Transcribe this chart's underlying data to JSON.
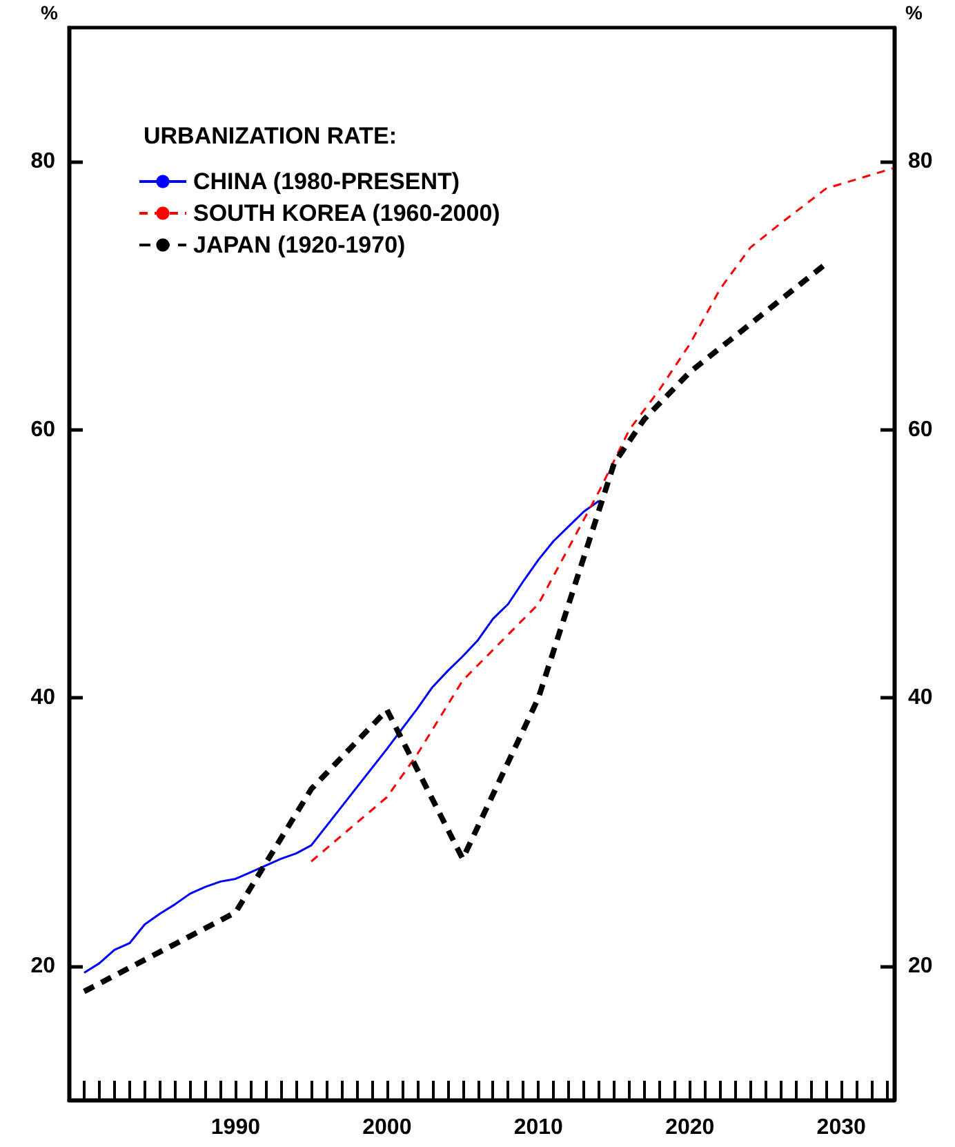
{
  "chart_data": {
    "type": "line",
    "legend_title": "URBANIZATION RATE:",
    "ylabel": "%",
    "y2label": "%",
    "xlim": [
      1979,
      2033.5
    ],
    "xticks": [
      {
        "value": 1980,
        "label": null
      },
      {
        "value": 1981,
        "label": null
      },
      {
        "value": 1982,
        "label": null
      },
      {
        "value": 1983,
        "label": null
      },
      {
        "value": 1984,
        "label": null
      },
      {
        "value": 1985,
        "label": null
      },
      {
        "value": 1986,
        "label": null
      },
      {
        "value": 1987,
        "label": null
      },
      {
        "value": 1988,
        "label": null
      },
      {
        "value": 1989,
        "label": null
      },
      1990,
      {
        "value": 1991,
        "label": null
      },
      {
        "value": 1992,
        "label": null
      },
      {
        "value": 1993,
        "label": null
      },
      {
        "value": 1994,
        "label": null
      },
      {
        "value": 1995,
        "label": null
      },
      {
        "value": 1996,
        "label": null
      },
      {
        "value": 1997,
        "label": null
      },
      {
        "value": 1998,
        "label": null
      },
      {
        "value": 1999,
        "label": null
      },
      2000,
      {
        "value": 2001,
        "label": null
      },
      {
        "value": 2002,
        "label": null
      },
      {
        "value": 2003,
        "label": null
      },
      {
        "value": 2004,
        "label": null
      },
      {
        "value": 2005,
        "label": null
      },
      {
        "value": 2006,
        "label": null
      },
      {
        "value": 2007,
        "label": null
      },
      {
        "value": 2008,
        "label": null
      },
      {
        "value": 2009,
        "label": null
      },
      2010,
      {
        "value": 2011,
        "label": null
      },
      {
        "value": 2012,
        "label": null
      },
      {
        "value": 2013,
        "label": null
      },
      {
        "value": 2014,
        "label": null
      },
      {
        "value": 2015,
        "label": null
      },
      {
        "value": 2016,
        "label": null
      },
      {
        "value": 2017,
        "label": null
      },
      {
        "value": 2018,
        "label": null
      },
      {
        "value": 2019,
        "label": null
      },
      2020,
      {
        "value": 2021,
        "label": null
      },
      {
        "value": 2022,
        "label": null
      },
      {
        "value": 2023,
        "label": null
      },
      {
        "value": 2024,
        "label": null
      },
      {
        "value": 2025,
        "label": null
      },
      {
        "value": 2026,
        "label": null
      },
      {
        "value": 2027,
        "label": null
      },
      {
        "value": 2028,
        "label": null
      },
      {
        "value": 2029,
        "label": null
      },
      2030,
      {
        "value": 2031,
        "label": null
      },
      {
        "value": 2032,
        "label": null
      },
      {
        "value": 2033,
        "label": null
      }
    ],
    "ylim": [
      10,
      90
    ],
    "yticks": [
      20,
      40,
      60,
      80
    ],
    "y2lim": [
      10,
      90
    ],
    "y2ticks": [
      20,
      40,
      60,
      80
    ],
    "grid": false,
    "legend": "top left",
    "marker": "none",
    "series": [
      {
        "name": "CHINA (1980-PRESENT)",
        "color": "#0000ff",
        "line_style": "solid",
        "x": [
          1980,
          1981,
          1982,
          1983,
          1984,
          1985,
          1986,
          1987,
          1988,
          1989,
          1990,
          1991,
          1992,
          1993,
          1994,
          1995,
          2000,
          2001,
          2002,
          2003,
          2004,
          2005,
          2006,
          2007,
          2008,
          2009,
          2010,
          2011,
          2012,
          2013,
          2014
        ],
        "values": [
          19.5,
          20.2,
          21.2,
          21.7,
          23.1,
          23.9,
          24.6,
          25.4,
          25.9,
          26.3,
          26.5,
          27,
          27.5,
          28,
          28.4,
          29,
          36.2,
          37.7,
          39.2,
          40.8,
          42,
          43.1,
          44.3,
          45.9,
          47,
          48.7,
          50.3,
          51.7,
          52.8,
          53.9,
          54.7
        ]
      },
      {
        "name": "SOUTH KOREA (1960-2000)",
        "color": "#ff0000",
        "line_style": "dashed",
        "x": [
          1995,
          2000,
          2002,
          2005,
          2010,
          2014,
          2016,
          2018,
          2020,
          2022,
          2024,
          2026,
          2029,
          2033.4
        ],
        "values": [
          27.8,
          32.6,
          35.8,
          41.3,
          47,
          55.4,
          60,
          63,
          66.4,
          70.5,
          73.6,
          75.4,
          78,
          79.5
        ]
      },
      {
        "name": "JAPAN (1920-1970)",
        "color": "#000000",
        "line_style": "dashed",
        "x": [
          1980,
          1990,
          1995,
          2000,
          2005,
          2010,
          2015,
          2017,
          2020,
          2025,
          2029
        ],
        "values": [
          18.1,
          24,
          33.2,
          39.1,
          28,
          40,
          57.5,
          60.8,
          64.3,
          68.8,
          72.4
        ]
      }
    ]
  }
}
